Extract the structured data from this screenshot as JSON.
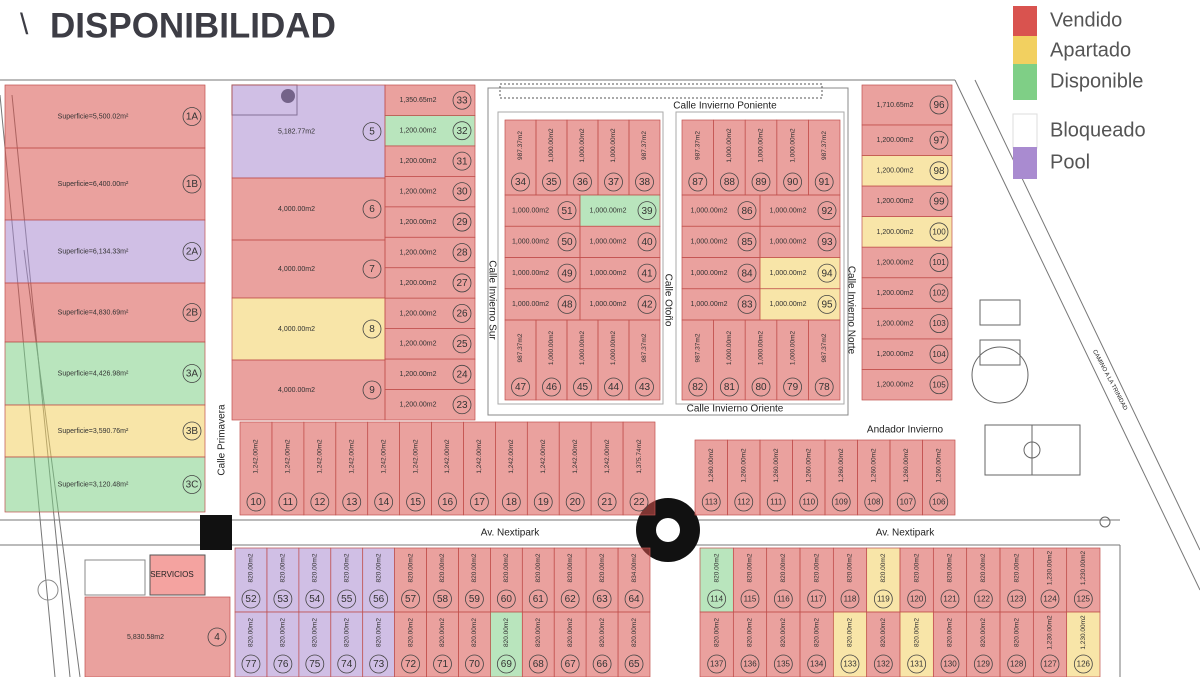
{
  "title": "DISPONIBILIDAD",
  "legend": [
    {
      "label": "Vendido",
      "color": "#d9534f"
    },
    {
      "label": "Apartado",
      "color": "#f2d060"
    },
    {
      "label": "Disponible",
      "color": "#7fcf86"
    },
    {
      "label": "Bloqueado",
      "color": "#ffffff"
    },
    {
      "label": "Pool",
      "color": "#a98bd0"
    }
  ],
  "streets": [
    "Calle Invierno Poniente",
    "Calle Invierno Sur",
    "Calle Otoño",
    "Calle Invierno Norte",
    "Calle Invierno Oriente",
    "Calle Primavera",
    "Av. Nextipark",
    "Av. Nextipark",
    "Andador Invierno",
    "CAMINO A LA TRINIDAD"
  ],
  "blocks": [
    {
      "lots": [
        {
          "number": "1A",
          "status": "Vendido",
          "area": "Superficie=5,500.02m²"
        },
        {
          "number": "1B",
          "status": "Vendido",
          "area": "Superficie=6,400.00m²"
        },
        {
          "number": "2A",
          "status": "Pool",
          "area": "Superficie=6,134.33m²"
        },
        {
          "number": "2B",
          "status": "Vendido",
          "area": "Superficie=4,830.69m²"
        },
        {
          "number": "3A",
          "status": "Disponible",
          "area": "Superficie=4,426.98m²"
        },
        {
          "number": "3B",
          "status": "Apartado",
          "area": "Superficie=3,590.76m²"
        },
        {
          "number": "3C",
          "status": "Disponible",
          "area": "Superficie=3,120.48m²"
        }
      ]
    },
    {
      "lots": [
        {
          "number": "5",
          "status": "Pool",
          "area": "5,182.77m2"
        },
        {
          "number": "6",
          "status": "Vendido",
          "area": "4,000.00m2"
        },
        {
          "number": "7",
          "status": "Vendido",
          "area": "4,000.00m2"
        },
        {
          "number": "8",
          "status": "Apartado",
          "area": "4,000.00m2"
        },
        {
          "number": "9",
          "status": "Vendido",
          "area": "4,000.00m2"
        }
      ]
    },
    {
      "lots": [
        {
          "number": "33",
          "status": "Vendido",
          "area": "1,350.65m2"
        },
        {
          "number": "32",
          "status": "Disponible",
          "area": "1,200.00m2"
        },
        {
          "number": "31",
          "status": "Vendido",
          "area": "1,200.00m2"
        },
        {
          "number": "30",
          "status": "Vendido",
          "area": "1,200.00m2"
        },
        {
          "number": "29",
          "status": "Vendido",
          "area": "1,200.00m2"
        },
        {
          "number": "28",
          "status": "Vendido",
          "area": "1,200.00m2"
        },
        {
          "number": "27",
          "status": "Vendido",
          "area": "1,200.00m2"
        },
        {
          "number": "26",
          "status": "Vendido",
          "area": "1,200.00m2"
        },
        {
          "number": "25",
          "status": "Vendido",
          "area": "1,200.00m2"
        },
        {
          "number": "24",
          "status": "Vendido",
          "area": "1,200.00m2"
        },
        {
          "number": "23",
          "status": "Vendido",
          "area": "1,200.00m2"
        }
      ]
    },
    {
      "lots": [
        {
          "number": "34",
          "status": "Vendido",
          "area": "987.37m2"
        },
        {
          "number": "35",
          "status": "Vendido",
          "area": "1,000.00m2"
        },
        {
          "number": "36",
          "status": "Vendido",
          "area": "1,000.00m2"
        },
        {
          "number": "37",
          "status": "Vendido",
          "area": "1,000.00m2"
        },
        {
          "number": "38",
          "status": "Vendido",
          "area": "987.37m2"
        }
      ]
    },
    {
      "lots": [
        {
          "number": "51",
          "status": "Vendido",
          "area": "1,000.00m2"
        },
        {
          "number": "50",
          "status": "Vendido",
          "area": "1,000.00m2"
        },
        {
          "number": "49",
          "status": "Vendido",
          "area": "1,000.00m2"
        },
        {
          "number": "48",
          "status": "Vendido",
          "area": "1,000.00m2"
        }
      ]
    },
    {
      "lots": [
        {
          "number": "39",
          "status": "Disponible",
          "area": "1,000.00m2"
        },
        {
          "number": "40",
          "status": "Vendido",
          "area": "1,000.00m2"
        },
        {
          "number": "41",
          "status": "Vendido",
          "area": "1,000.00m2"
        },
        {
          "number": "42",
          "status": "Vendido",
          "area": "1,000.00m2"
        }
      ]
    },
    {
      "lots": [
        {
          "number": "47",
          "status": "Vendido",
          "area": "987.37m2"
        },
        {
          "number": "46",
          "status": "Vendido",
          "area": "1,000.00m2"
        },
        {
          "number": "45",
          "status": "Vendido",
          "area": "1,000.00m2"
        },
        {
          "number": "44",
          "status": "Vendido",
          "area": "1,000.00m2"
        },
        {
          "number": "43",
          "status": "Vendido",
          "area": "987.37m2"
        }
      ]
    },
    {
      "lots": [
        {
          "number": "87",
          "status": "Vendido",
          "area": "987.37m2"
        },
        {
          "number": "88",
          "status": "Vendido",
          "area": "1,000.00m2"
        },
        {
          "number": "89",
          "status": "Vendido",
          "area": "1,000.00m2"
        },
        {
          "number": "90",
          "status": "Vendido",
          "area": "1,000.00m2"
        },
        {
          "number": "91",
          "status": "Vendido",
          "area": "987.37m2"
        }
      ]
    },
    {
      "lots": [
        {
          "number": "86",
          "status": "Vendido",
          "area": "1,000.00m2"
        },
        {
          "number": "85",
          "status": "Vendido",
          "area": "1,000.00m2"
        },
        {
          "number": "84",
          "status": "Vendido",
          "area": "1,000.00m2"
        },
        {
          "number": "83",
          "status": "Vendido",
          "area": "1,000.00m2"
        }
      ]
    },
    {
      "lots": [
        {
          "number": "92",
          "status": "Vendido",
          "area": "1,000.00m2"
        },
        {
          "number": "93",
          "status": "Vendido",
          "area": "1,000.00m2"
        },
        {
          "number": "94",
          "status": "Apartado",
          "area": "1,000.00m2"
        },
        {
          "number": "95",
          "status": "Apartado",
          "area": "1,000.00m2"
        }
      ]
    },
    {
      "lots": [
        {
          "number": "82",
          "status": "Vendido",
          "area": "987.37m2"
        },
        {
          "number": "81",
          "status": "Vendido",
          "area": "1,000.00m2"
        },
        {
          "number": "80",
          "status": "Vendido",
          "area": "1,000.00m2"
        },
        {
          "number": "79",
          "status": "Vendido",
          "area": "1,000.00m2"
        },
        {
          "number": "78",
          "status": "Vendido",
          "area": "987.37m2"
        }
      ]
    },
    {
      "lots": [
        {
          "number": "96",
          "status": "Vendido",
          "area": "1,710.65m2"
        },
        {
          "number": "97",
          "status": "Vendido",
          "area": "1,200.00m2"
        },
        {
          "number": "98",
          "status": "Apartado",
          "area": "1,200.00m2"
        },
        {
          "number": "99",
          "status": "Vendido",
          "area": "1,200.00m2"
        },
        {
          "number": "100",
          "status": "Apartado",
          "area": "1,200.00m2"
        },
        {
          "number": "101",
          "status": "Vendido",
          "area": "1,200.00m2"
        },
        {
          "number": "102",
          "status": "Vendido",
          "area": "1,200.00m2"
        },
        {
          "number": "103",
          "status": "Vendido",
          "area": "1,200.00m2"
        },
        {
          "number": "104",
          "status": "Vendido",
          "area": "1,200.00m2"
        },
        {
          "number": "105",
          "status": "Vendido",
          "area": "1,200.00m2"
        }
      ]
    },
    {
      "lots": [
        {
          "number": "10",
          "status": "Vendido",
          "area": "1,242.00m2"
        },
        {
          "number": "11",
          "status": "Vendido",
          "area": "1,242.00m2"
        },
        {
          "number": "12",
          "status": "Vendido",
          "area": "1,242.00m2"
        },
        {
          "number": "13",
          "status": "Vendido",
          "area": "1,242.00m2"
        },
        {
          "number": "14",
          "status": "Vendido",
          "area": "1,242.00m2"
        },
        {
          "number": "15",
          "status": "Vendido",
          "area": "1,242.00m2"
        },
        {
          "number": "16",
          "status": "Vendido",
          "area": "1,242.00m2"
        },
        {
          "number": "17",
          "status": "Vendido",
          "area": "1,242.00m2"
        },
        {
          "number": "18",
          "status": "Vendido",
          "area": "1,242.00m2"
        },
        {
          "number": "19",
          "status": "Vendido",
          "area": "1,242.00m2"
        },
        {
          "number": "20",
          "status": "Vendido",
          "area": "1,242.00m2"
        },
        {
          "number": "21",
          "status": "Vendido",
          "area": "1,242.00m2"
        },
        {
          "number": "22",
          "status": "Vendido",
          "area": "1,375.74m2"
        }
      ]
    },
    {
      "lots": [
        {
          "number": "113",
          "status": "Vendido",
          "area": "1,260.00m2"
        },
        {
          "number": "112",
          "status": "Vendido",
          "area": "1,260.00m2"
        },
        {
          "number": "111",
          "status": "Vendido",
          "area": "1,260.00m2"
        },
        {
          "number": "110",
          "status": "Vendido",
          "area": "1,260.00m2"
        },
        {
          "number": "109",
          "status": "Vendido",
          "area": "1,260.00m2"
        },
        {
          "number": "108",
          "status": "Vendido",
          "area": "1,260.00m2"
        },
        {
          "number": "107",
          "status": "Vendido",
          "area": "1,260.00m2"
        },
        {
          "number": "106",
          "status": "Vendido",
          "area": "1,260.00m2"
        }
      ]
    },
    {
      "lots": [
        {
          "number": "52",
          "status": "Pool",
          "area": "820.00m2"
        },
        {
          "number": "53",
          "status": "Pool",
          "area": "820.00m2"
        },
        {
          "number": "54",
          "status": "Pool",
          "area": "820.00m2"
        },
        {
          "number": "55",
          "status": "Pool",
          "area": "820.00m2"
        },
        {
          "number": "56",
          "status": "Pool",
          "area": "820.00m2"
        },
        {
          "number": "57",
          "status": "Vendido",
          "area": "820.00m2"
        },
        {
          "number": "58",
          "status": "Vendido",
          "area": "820.00m2"
        },
        {
          "number": "59",
          "status": "Vendido",
          "area": "820.00m2"
        },
        {
          "number": "60",
          "status": "Vendido",
          "area": "820.00m2"
        },
        {
          "number": "61",
          "status": "Vendido",
          "area": "820.00m2"
        },
        {
          "number": "62",
          "status": "Vendido",
          "area": "820.00m2"
        },
        {
          "number": "63",
          "status": "Vendido",
          "area": "820.00m2"
        },
        {
          "number": "64",
          "status": "Vendido",
          "area": "834.00m2"
        }
      ]
    },
    {
      "lots": [
        {
          "number": "77",
          "status": "Pool",
          "area": "820.00m2"
        },
        {
          "number": "76",
          "status": "Pool",
          "area": "820.00m2"
        },
        {
          "number": "75",
          "status": "Pool",
          "area": "820.00m2"
        },
        {
          "number": "74",
          "status": "Pool",
          "area": "820.00m2"
        },
        {
          "number": "73",
          "status": "Pool",
          "area": "820.00m2"
        },
        {
          "number": "72",
          "status": "Vendido",
          "area": "820.00m2"
        },
        {
          "number": "71",
          "status": "Vendido",
          "area": "820.00m2"
        },
        {
          "number": "70",
          "status": "Vendido",
          "area": "820.00m2"
        },
        {
          "number": "69",
          "status": "Disponible",
          "area": "820.00m2"
        },
        {
          "number": "68",
          "status": "Vendido",
          "area": "820.00m2"
        },
        {
          "number": "67",
          "status": "Vendido",
          "area": "820.00m2"
        },
        {
          "number": "66",
          "status": "Vendido",
          "area": "820.00m2"
        },
        {
          "number": "65",
          "status": "Vendido",
          "area": "820.00m2"
        }
      ]
    },
    {
      "lots": [
        {
          "number": "114",
          "status": "Disponible",
          "area": "820.00m2"
        },
        {
          "number": "115",
          "status": "Vendido",
          "area": "820.00m2"
        },
        {
          "number": "116",
          "status": "Vendido",
          "area": "820.00m2"
        },
        {
          "number": "117",
          "status": "Vendido",
          "area": "820.00m2"
        },
        {
          "number": "118",
          "status": "Vendido",
          "area": "820.00m2"
        },
        {
          "number": "119",
          "status": "Apartado",
          "area": "820.00m2"
        },
        {
          "number": "120",
          "status": "Vendido",
          "area": "820.00m2"
        },
        {
          "number": "121",
          "status": "Vendido",
          "area": "820.00m2"
        },
        {
          "number": "122",
          "status": "Vendido",
          "area": "820.00m2"
        },
        {
          "number": "123",
          "status": "Vendido",
          "area": "820.00m2"
        },
        {
          "number": "124",
          "status": "Vendido",
          "area": "1,230.00m2"
        },
        {
          "number": "125",
          "status": "Vendido",
          "area": "1,230.00m2"
        }
      ]
    },
    {
      "lots": [
        {
          "number": "137",
          "status": "Vendido",
          "area": "820.00m2"
        },
        {
          "number": "136",
          "status": "Vendido",
          "area": "820.00m2"
        },
        {
          "number": "135",
          "status": "Vendido",
          "area": "820.00m2"
        },
        {
          "number": "134",
          "status": "Vendido",
          "area": "820.00m2"
        },
        {
          "number": "133",
          "status": "Apartado",
          "area": "820.00m2"
        },
        {
          "number": "132",
          "status": "Vendido",
          "area": "820.00m2"
        },
        {
          "number": "131",
          "status": "Apartado",
          "area": "820.00m2"
        },
        {
          "number": "130",
          "status": "Vendido",
          "area": "820.00m2"
        },
        {
          "number": "129",
          "status": "Vendido",
          "area": "820.00m2"
        },
        {
          "number": "128",
          "status": "Vendido",
          "area": "820.00m2"
        },
        {
          "number": "127",
          "status": "Vendido",
          "area": "1,230.00m2"
        },
        {
          "number": "126",
          "status": "Apartado",
          "area": "1,230.00m2"
        }
      ]
    },
    {
      "lots": [
        {
          "number": "4",
          "status": "Vendido",
          "area": "5,830.58m2"
        }
      ]
    }
  ],
  "service": "SERVICIOS"
}
